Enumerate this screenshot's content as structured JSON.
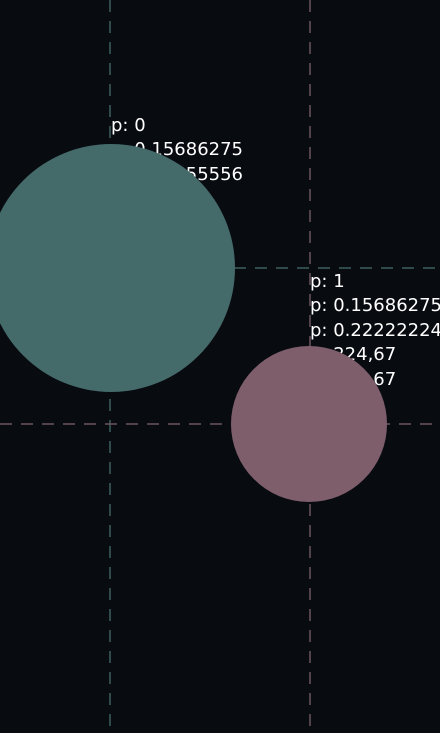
{
  "colors": {
    "background": "#080b10",
    "teal": "#446a6a",
    "pink": "#7e5e6b",
    "teal_dash": "#3d5f5f",
    "pink_dash": "#6a545d",
    "text": "#ffffff"
  },
  "points": [
    {
      "name": "teal",
      "lines": [
        "p: 0",
        "p: 0.15686275",
        "p: 0.15555556"
      ]
    },
    {
      "name": "pink",
      "lines": [
        "p: 1",
        "p: 0.15686275",
        "p: 0.22222224",
        "p: 224,67",
        "p: 224,67"
      ]
    }
  ]
}
